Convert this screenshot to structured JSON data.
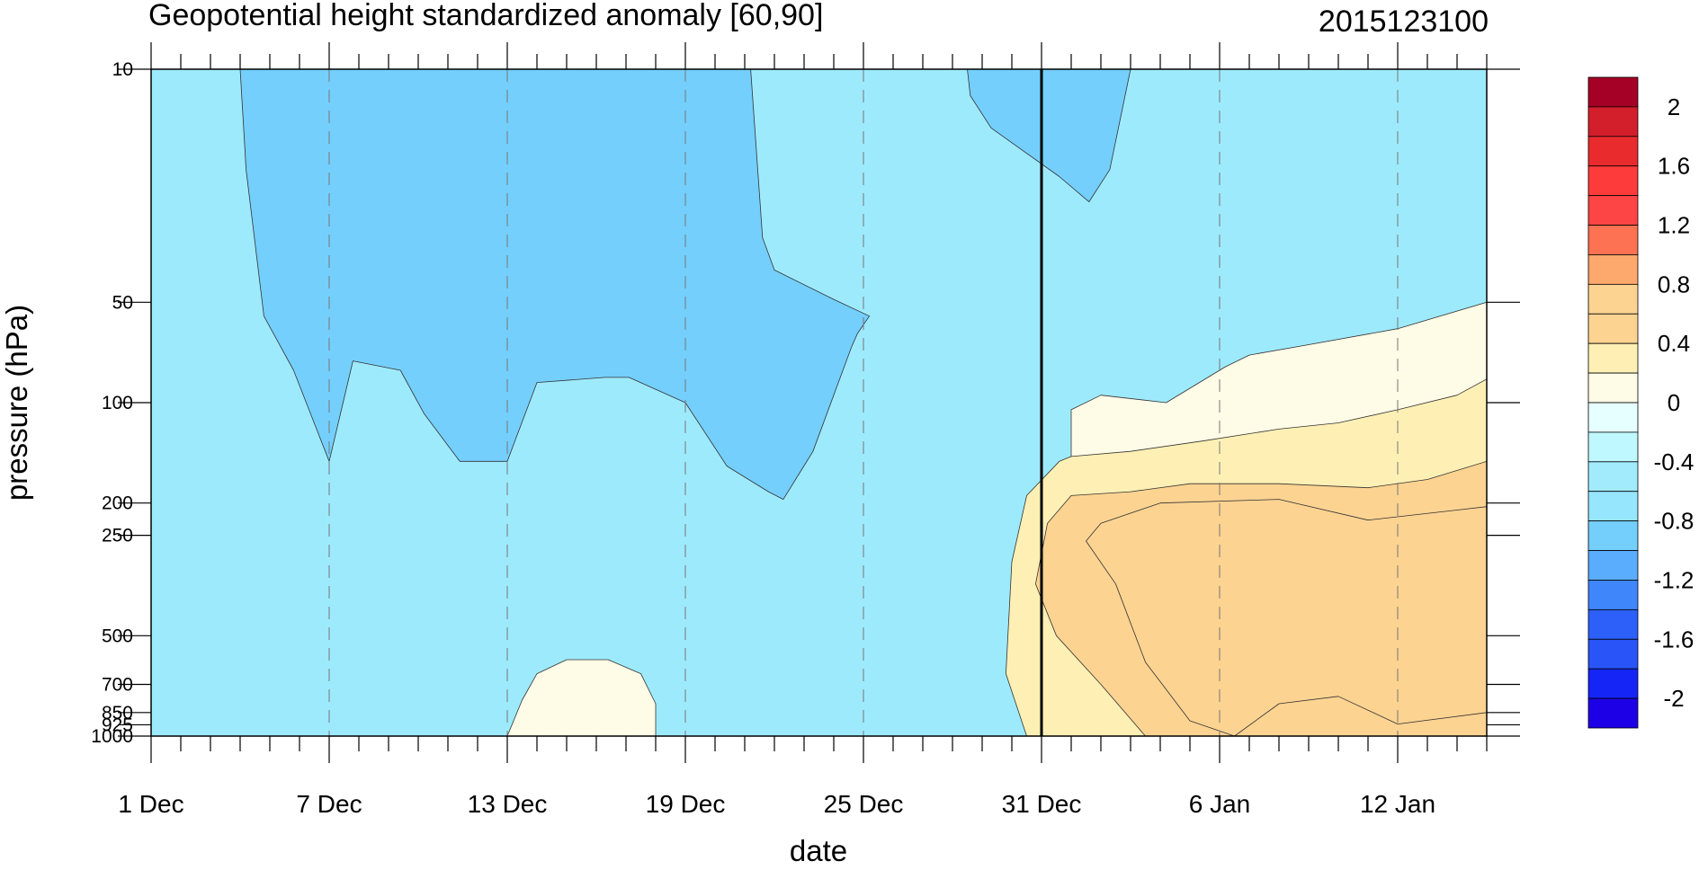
{
  "chart_data": {
    "type": "heatmap",
    "title": "Geopotential height standardized anomaly [60,90]",
    "date_label": "2015123100",
    "xlabel": "date",
    "ylabel": "pressure (hPa)",
    "x_axis": {
      "start_date": "1 Dec",
      "end_date": "15 Jan",
      "tick_labels": [
        "1 Dec",
        "7 Dec",
        "13 Dec",
        "19 Dec",
        "25 Dec",
        "31 Dec",
        "6 Jan",
        "12 Jan"
      ],
      "tick_days": [
        0,
        6,
        12,
        18,
        24,
        30,
        36,
        42
      ],
      "range_days": [
        0,
        45
      ],
      "vertical_marker": "31 Dec"
    },
    "y_axis": {
      "scale": "log",
      "reversed": true,
      "range": [
        1000,
        10
      ],
      "ticks": [
        10,
        50,
        100,
        200,
        250,
        500,
        700,
        850,
        925,
        1000
      ],
      "tick_labels": [
        "10",
        "50",
        "100",
        "200",
        "250",
        "500",
        "700",
        "850",
        "925",
        "1000"
      ]
    },
    "grid": "dashed vertical at labeled dates",
    "levels": [
      -2.2,
      -2,
      -1.8,
      -1.6,
      -1.4,
      -1.2,
      -1,
      -0.8,
      -0.6,
      -0.4,
      -0.2,
      0,
      0.2,
      0.4,
      0.6,
      0.8,
      1,
      1.2,
      1.4,
      1.6,
      1.8,
      2,
      2.2
    ],
    "colorbar": {
      "placement": "right",
      "labels": [
        "2",
        "1.6",
        "1.2",
        "0.8",
        "0.4",
        "0",
        "-0.4",
        "-0.8",
        "-1.2",
        "-1.6",
        "-2"
      ],
      "label_values": [
        2,
        1.6,
        1.2,
        0.8,
        0.4,
        0,
        -0.4,
        -0.8,
        -1.2,
        -1.6,
        -2
      ],
      "colors": [
        "#a50026",
        "#d31f2c",
        "#ea2b2e",
        "#fd3b3b",
        "#fd4545",
        "#fc7252",
        "#fda86c",
        "#fcd391",
        "#fcd391",
        "#fef0b5",
        "#fefbe6",
        "#e6ffff",
        "#bff8ff",
        "#a2ebfd",
        "#96e6fd",
        "#74cffd",
        "#5aacfc",
        "#3e86fa",
        "#2d60f9",
        "#2954f8",
        "#1425f6",
        "#1e00e6"
      ]
    },
    "fills": [
      {
        "level": -1.1,
        "color": "#5aacfc",
        "points": [
          [
            9,
            10
          ],
          [
            15,
            10
          ],
          [
            14.4,
            20
          ],
          [
            13.5,
            28
          ],
          [
            12,
            34
          ],
          [
            11,
            32
          ],
          [
            10.3,
            20
          ]
        ]
      },
      {
        "level": -0.7,
        "color": "#74cffd",
        "points": [
          [
            3,
            10
          ],
          [
            20.2,
            10
          ],
          [
            20.6,
            32
          ],
          [
            21,
            40
          ],
          [
            23,
            49
          ],
          [
            24.2,
            55
          ],
          [
            23.8,
            62
          ],
          [
            23.6,
            68
          ],
          [
            22.3,
            140
          ],
          [
            21.3,
            195
          ],
          [
            20.8,
            185
          ],
          [
            19.4,
            155
          ],
          [
            18,
            100
          ],
          [
            16.1,
            84
          ],
          [
            15.3,
            84
          ],
          [
            13,
            87
          ],
          [
            12,
            150
          ],
          [
            10.4,
            150
          ],
          [
            9.2,
            108
          ],
          [
            8.4,
            80
          ],
          [
            6.8,
            75
          ],
          [
            6,
            150
          ],
          [
            4.8,
            80
          ],
          [
            3.8,
            55
          ],
          [
            3.4,
            28
          ],
          [
            3.2,
            20
          ]
        ]
      },
      {
        "level": -0.7,
        "color": "#74cffd",
        "points": [
          [
            27.5,
            10
          ],
          [
            33,
            10
          ],
          [
            32.3,
            20
          ],
          [
            31.6,
            25
          ],
          [
            30.6,
            21
          ],
          [
            28.3,
            15
          ],
          [
            27.6,
            12
          ]
        ]
      },
      {
        "level": 0.1,
        "color": "#fefbe6",
        "points": [
          [
            30.5,
            1000
          ],
          [
            31,
            150
          ],
          [
            31,
            105
          ],
          [
            32,
            95
          ],
          [
            34.2,
            100
          ],
          [
            36.2,
            78
          ],
          [
            37,
            72
          ],
          [
            39,
            67
          ],
          [
            42,
            60
          ],
          [
            45,
            50
          ],
          [
            45,
            1000
          ]
        ]
      },
      {
        "level": 0.3,
        "color": "#fef0b5",
        "points": [
          [
            29.5,
            1000
          ],
          [
            28.8,
            650
          ],
          [
            29,
            300
          ],
          [
            29.5,
            190
          ],
          [
            30.6,
            150
          ],
          [
            31,
            145
          ],
          [
            33,
            140
          ],
          [
            35.5,
            130
          ],
          [
            38,
            120
          ],
          [
            40,
            115
          ],
          [
            42,
            105
          ],
          [
            44,
            95
          ],
          [
            45,
            85
          ],
          [
            45,
            1000
          ]
        ]
      },
      {
        "level": 0.7,
        "color": "#fcd391",
        "points": [
          [
            33.5,
            1000
          ],
          [
            32,
            700
          ],
          [
            30.5,
            500
          ],
          [
            29.8,
            350
          ],
          [
            30.2,
            230
          ],
          [
            31,
            190
          ],
          [
            33,
            185
          ],
          [
            35,
            175
          ],
          [
            38,
            175
          ],
          [
            41,
            180
          ],
          [
            43,
            170
          ],
          [
            45,
            150
          ],
          [
            45,
            1000
          ]
        ]
      },
      {
        "level": 0.9,
        "color": "#fcd391",
        "points": [
          [
            36.5,
            1000
          ],
          [
            35,
            900
          ],
          [
            33.5,
            600
          ],
          [
            32.5,
            350
          ],
          [
            31.5,
            260
          ],
          [
            32,
            230
          ],
          [
            34,
            200
          ],
          [
            38,
            195
          ],
          [
            41,
            225
          ],
          [
            44,
            210
          ],
          [
            45,
            205
          ],
          [
            45,
            850
          ],
          [
            42,
            920
          ],
          [
            40,
            760
          ],
          [
            38,
            800
          ]
        ]
      },
      {
        "level": 0.1,
        "color": "#fefbe6",
        "points": [
          [
            12,
            1000
          ],
          [
            12.5,
            780
          ],
          [
            13,
            650
          ],
          [
            14,
            590
          ],
          [
            15.4,
            590
          ],
          [
            16.5,
            650
          ],
          [
            17,
            800
          ],
          [
            17,
            1000
          ]
        ]
      }
    ]
  }
}
